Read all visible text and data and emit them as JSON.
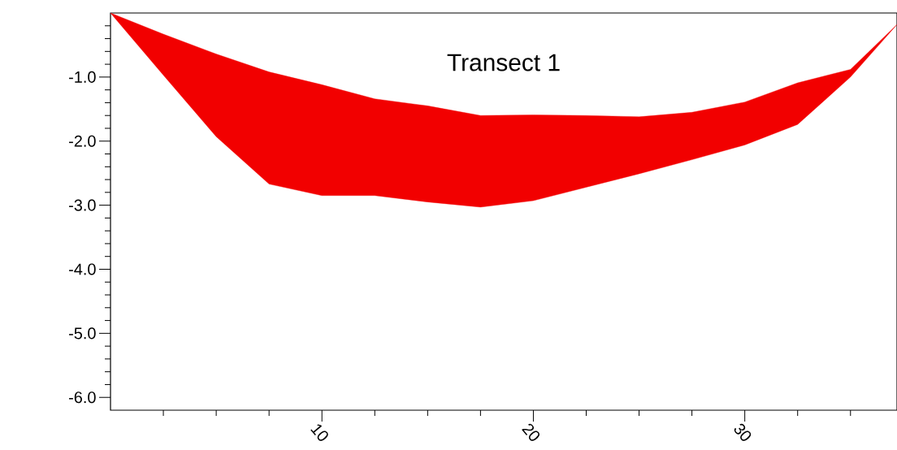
{
  "chart_data": {
    "type": "area",
    "title": "Transect 1",
    "x": [
      0,
      2.5,
      5,
      7.5,
      10,
      12.5,
      15,
      17.5,
      20,
      22.5,
      25,
      27.5,
      30,
      32.5,
      35,
      37.2
    ],
    "series": [
      {
        "color": "#f20000",
        "values": [
          null,
          null,
          null,
          null,
          null,
          null,
          null,
          null,
          null,
          null,
          null,
          null,
          null,
          null,
          null,
          null
        ],
        "upper": [
          0,
          -0.33,
          -0.64,
          -0.92,
          -1.12,
          -1.34,
          -1.45,
          -1.6,
          -1.59,
          -1.6,
          -1.62,
          -1.55,
          -1.39,
          -1.09,
          -0.88,
          -0.18
        ],
        "lower": [
          0,
          -0.97,
          -1.93,
          -2.67,
          -2.85,
          -2.85,
          -2.95,
          -3.03,
          -2.93,
          -2.72,
          -2.51,
          -2.29,
          -2.06,
          -1.74,
          -1.0,
          -0.18
        ]
      }
    ],
    "xlim": [
      0,
      37.2
    ],
    "ylim": [
      -6.2,
      0
    ],
    "xticks": [
      {
        "value": 2.5,
        "label": null
      },
      {
        "value": 5,
        "label": null
      },
      {
        "value": 7.5,
        "label": null
      },
      {
        "value": 10,
        "label": "10"
      },
      {
        "value": 12.5,
        "label": null
      },
      {
        "value": 15,
        "label": null
      },
      {
        "value": 17.5,
        "label": null
      },
      {
        "value": 20,
        "label": "20"
      },
      {
        "value": 22.5,
        "label": null
      },
      {
        "value": 25,
        "label": null
      },
      {
        "value": 27.5,
        "label": null
      },
      {
        "value": 30,
        "label": "30"
      },
      {
        "value": 32.5,
        "label": null
      },
      {
        "value": 35,
        "label": null
      }
    ],
    "yticks": [
      {
        "value": -6,
        "label": "-6.0"
      },
      {
        "value": -5,
        "label": "-5.0"
      },
      {
        "value": -4,
        "label": "-4.0"
      },
      {
        "value": -3,
        "label": "-3.0"
      },
      {
        "value": -2,
        "label": "-2.0"
      },
      {
        "value": -1,
        "label": "-1.0"
      },
      {
        "value": -5.8,
        "label": null
      },
      {
        "value": -5.6,
        "label": null
      },
      {
        "value": -5.4,
        "label": null
      },
      {
        "value": -5.2,
        "label": null
      },
      {
        "value": -4.8,
        "label": null
      },
      {
        "value": -4.6,
        "label": null
      },
      {
        "value": -4.4,
        "label": null
      },
      {
        "value": -4.2,
        "label": null
      },
      {
        "value": -3.8,
        "label": null
      },
      {
        "value": -3.6,
        "label": null
      },
      {
        "value": -3.4,
        "label": null
      },
      {
        "value": -3.2,
        "label": null
      },
      {
        "value": -2.8,
        "label": null
      },
      {
        "value": -2.6,
        "label": null
      },
      {
        "value": -2.4,
        "label": null
      },
      {
        "value": -2.2,
        "label": null
      },
      {
        "value": -1.8,
        "label": null
      },
      {
        "value": -1.6,
        "label": null
      },
      {
        "value": -1.4,
        "label": null
      },
      {
        "value": -1.2,
        "label": null
      },
      {
        "value": -0.8,
        "label": null
      },
      {
        "value": -0.6,
        "label": null
      },
      {
        "value": -0.4,
        "label": null
      },
      {
        "value": -0.2,
        "label": null
      }
    ],
    "grid": false
  }
}
